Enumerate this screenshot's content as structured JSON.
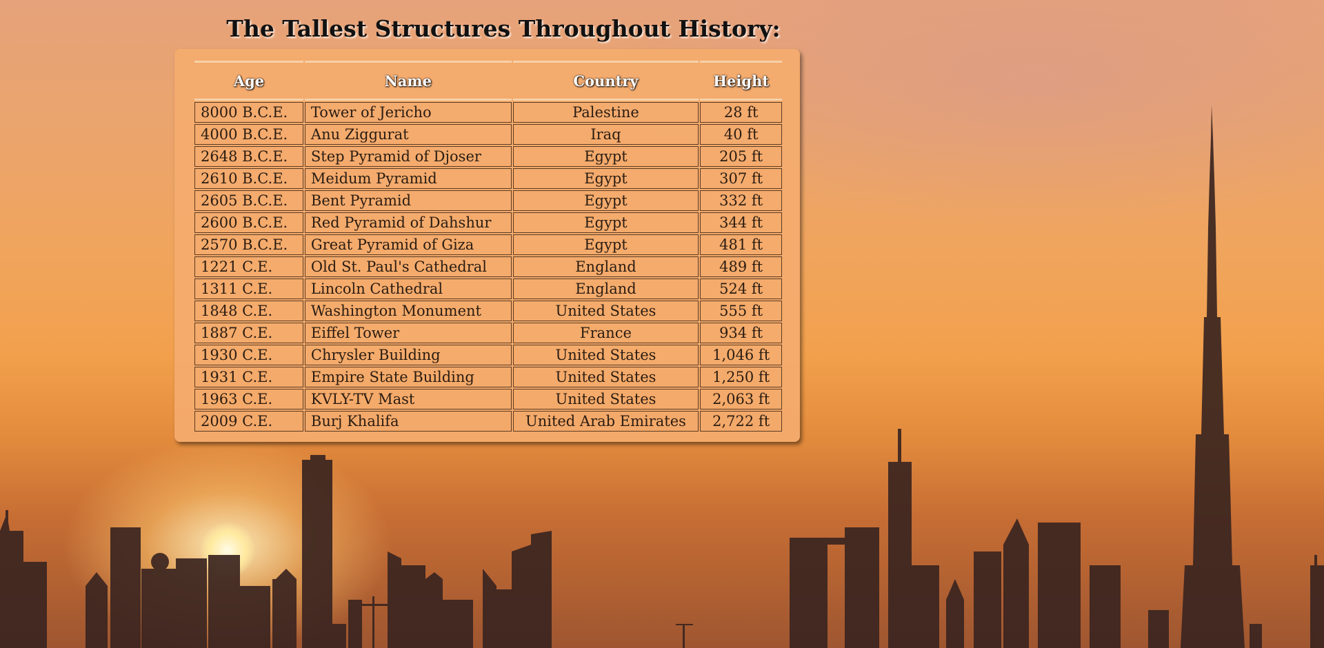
{
  "page": {
    "title": "The Tallest Structures Throughout History:"
  },
  "table": {
    "headers": [
      "Age",
      "Name",
      "Country",
      "Height"
    ],
    "rows": [
      [
        "8000 B.C.E.",
        "Tower of Jericho",
        "Palestine",
        "28 ft"
      ],
      [
        "4000 B.C.E.",
        "Anu Ziggurat",
        "Iraq",
        "40 ft"
      ],
      [
        "2648 B.C.E.",
        "Step Pyramid of Djoser",
        "Egypt",
        "205 ft"
      ],
      [
        "2610 B.C.E.",
        "Meidum Pyramid",
        "Egypt",
        "307 ft"
      ],
      [
        "2605 B.C.E.",
        "Bent Pyramid",
        "Egypt",
        "332 ft"
      ],
      [
        "2600 B.C.E.",
        "Red Pyramid of Dahshur",
        "Egypt",
        "344 ft"
      ],
      [
        "2570 B.C.E.",
        "Great Pyramid of Giza",
        "Egypt",
        "481 ft"
      ],
      [
        "1221 C.E.",
        "Old St. Paul's Cathedral",
        "England",
        "489 ft"
      ],
      [
        "1311 C.E.",
        "Lincoln Cathedral",
        "England",
        "524 ft"
      ],
      [
        "1848 C.E.",
        "Washington Monument",
        "United States",
        "555 ft"
      ],
      [
        "1887 C.E.",
        "Eiffel Tower",
        "France",
        "934 ft"
      ],
      [
        "1930 C.E.",
        "Chrysler Building",
        "United States",
        "1,046 ft"
      ],
      [
        "1931 C.E.",
        "Empire State Building",
        "United States",
        "1,250 ft"
      ],
      [
        "1963 C.E.",
        "KVLY-TV Mast",
        "United States",
        "2,063 ft"
      ],
      [
        "2009 C.E.",
        "Burj Khalifa",
        "United Arab Emirates",
        "2,722 ft"
      ]
    ]
  },
  "background": {
    "description_colors": {
      "sky_top": "#e6a27a",
      "sky_mid": "#f0a55e",
      "sky_bottom": "#9f5630",
      "skyline": "#3a2420",
      "table_bg": "#f4ab6e"
    }
  }
}
